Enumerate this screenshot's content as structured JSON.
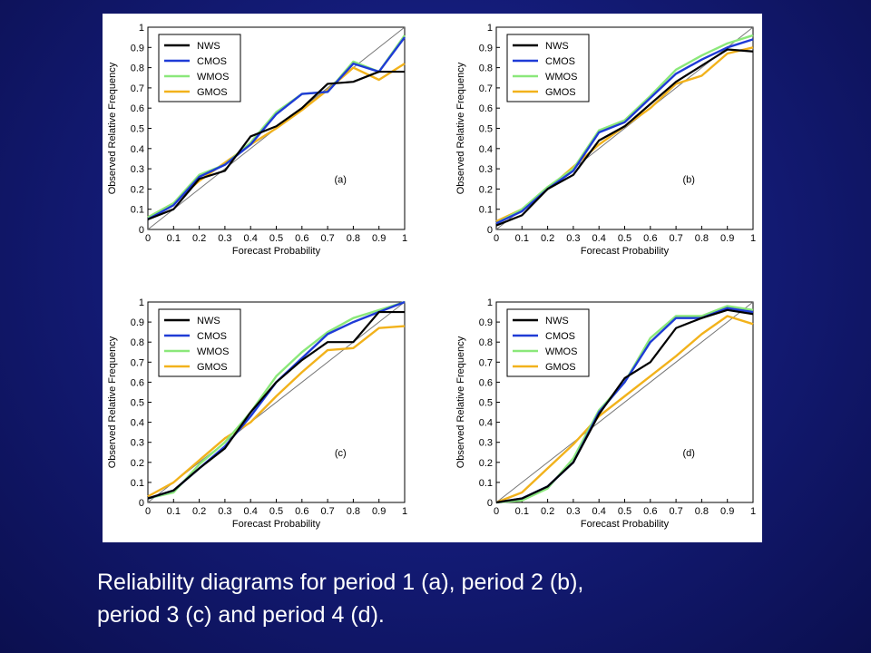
{
  "caption": {
    "line1": "Reliability diagrams for period 1 (a), period 2 (b),",
    "line2": "period 3 (c) and period 4 (d)."
  },
  "colors": {
    "NWS": "#000000",
    "CMOS": "#1f3bd6",
    "WMOS": "#8be87a",
    "GMOS": "#f2b21b",
    "background": "#141c7a",
    "diagonal": "#777777"
  },
  "chart_data": [
    {
      "type": "line",
      "panel_label": "(a)",
      "xlabel": "Forecast Probability",
      "ylabel": "Observed Relative Frequency",
      "xlim": [
        0,
        1
      ],
      "ylim": [
        0,
        1
      ],
      "xticks": [
        "0",
        "0.1",
        "0.2",
        "0.3",
        "0.4",
        "0.5",
        "0.6",
        "0.7",
        "0.8",
        "0.9",
        "1"
      ],
      "yticks": [
        "0",
        "0.1",
        "0.2",
        "0.3",
        "0.4",
        "0.5",
        "0.6",
        "0.7",
        "0.8",
        "0.9",
        "1"
      ],
      "legend_position": "top-left",
      "reference_line": "diagonal",
      "x": [
        0,
        0.1,
        0.2,
        0.3,
        0.4,
        0.5,
        0.6,
        0.7,
        0.8,
        0.9,
        1.0
      ],
      "series": [
        {
          "name": "NWS",
          "values": [
            0.05,
            0.1,
            0.25,
            0.29,
            0.46,
            0.51,
            0.6,
            0.72,
            0.73,
            0.78,
            0.78
          ]
        },
        {
          "name": "CMOS",
          "values": [
            0.05,
            0.12,
            0.26,
            0.32,
            0.42,
            0.57,
            0.67,
            0.68,
            0.82,
            0.78,
            0.95
          ]
        },
        {
          "name": "WMOS",
          "values": [
            0.06,
            0.13,
            0.27,
            0.32,
            0.43,
            0.58,
            0.67,
            0.68,
            0.83,
            0.78,
            0.96
          ]
        },
        {
          "name": "GMOS",
          "values": [
            0.06,
            0.13,
            0.24,
            0.33,
            0.42,
            0.5,
            0.59,
            0.69,
            0.8,
            0.74,
            0.82
          ]
        }
      ]
    },
    {
      "type": "line",
      "panel_label": "(b)",
      "xlabel": "Forecast Probability",
      "ylabel": "Observed Relative Frequency",
      "xlim": [
        0,
        1
      ],
      "ylim": [
        0,
        1
      ],
      "xticks": [
        "0",
        "0.1",
        "0.2",
        "0.3",
        "0.4",
        "0.5",
        "0.6",
        "0.7",
        "0.8",
        "0.9",
        "1"
      ],
      "yticks": [
        "0",
        "0.1",
        "0.2",
        "0.3",
        "0.4",
        "0.5",
        "0.6",
        "0.7",
        "0.8",
        "0.9",
        "1"
      ],
      "legend_position": "top-left",
      "reference_line": "diagonal",
      "x": [
        0,
        0.1,
        0.2,
        0.3,
        0.4,
        0.5,
        0.6,
        0.7,
        0.8,
        0.9,
        1.0
      ],
      "series": [
        {
          "name": "NWS",
          "values": [
            0.02,
            0.07,
            0.2,
            0.27,
            0.44,
            0.51,
            0.62,
            0.73,
            0.81,
            0.89,
            0.88
          ]
        },
        {
          "name": "CMOS",
          "values": [
            0.03,
            0.09,
            0.2,
            0.29,
            0.48,
            0.53,
            0.65,
            0.77,
            0.84,
            0.9,
            0.94
          ]
        },
        {
          "name": "WMOS",
          "values": [
            0.03,
            0.1,
            0.21,
            0.3,
            0.49,
            0.54,
            0.66,
            0.79,
            0.86,
            0.92,
            0.96
          ]
        },
        {
          "name": "GMOS",
          "values": [
            0.04,
            0.1,
            0.2,
            0.31,
            0.42,
            0.51,
            0.6,
            0.72,
            0.76,
            0.87,
            0.9
          ]
        }
      ]
    },
    {
      "type": "line",
      "panel_label": "(c)",
      "xlabel": "Forecast Probability",
      "ylabel": "Observed Relative Frequency",
      "xlim": [
        0,
        1
      ],
      "ylim": [
        0,
        1
      ],
      "xticks": [
        "0",
        "0.1",
        "0.2",
        "0.3",
        "0.4",
        "0.5",
        "0.6",
        "0.7",
        "0.8",
        "0.9",
        "1"
      ],
      "yticks": [
        "0",
        "0.1",
        "0.2",
        "0.3",
        "0.4",
        "0.5",
        "0.6",
        "0.7",
        "0.8",
        "0.9",
        "1"
      ],
      "legend_position": "top-left",
      "reference_line": "diagonal",
      "x": [
        0,
        0.1,
        0.2,
        0.3,
        0.4,
        0.5,
        0.6,
        0.7,
        0.8,
        0.9,
        1.0
      ],
      "series": [
        {
          "name": "NWS",
          "values": [
            0.02,
            0.06,
            0.17,
            0.27,
            0.45,
            0.6,
            0.71,
            0.8,
            0.8,
            0.95,
            0.95
          ]
        },
        {
          "name": "CMOS",
          "values": [
            0.02,
            0.06,
            0.17,
            0.28,
            0.43,
            0.6,
            0.72,
            0.84,
            0.9,
            0.95,
            1.0
          ]
        },
        {
          "name": "WMOS",
          "values": [
            0.02,
            0.05,
            0.19,
            0.3,
            0.45,
            0.63,
            0.75,
            0.85,
            0.92,
            0.96,
            1.0
          ]
        },
        {
          "name": "GMOS",
          "values": [
            0.03,
            0.1,
            0.21,
            0.32,
            0.4,
            0.53,
            0.65,
            0.76,
            0.77,
            0.87,
            0.88
          ]
        }
      ]
    },
    {
      "type": "line",
      "panel_label": "(d)",
      "xlabel": "Forecast Probability",
      "ylabel": "Observed Relative Frequency",
      "xlim": [
        0,
        1
      ],
      "ylim": [
        0,
        1
      ],
      "xticks": [
        "0",
        "0.1",
        "0.2",
        "0.3",
        "0.4",
        "0.5",
        "0.6",
        "0.7",
        "0.8",
        "0.9",
        "1"
      ],
      "yticks": [
        "0",
        "0.1",
        "0.2",
        "0.3",
        "0.4",
        "0.5",
        "0.6",
        "0.7",
        "0.8",
        "0.9",
        "1"
      ],
      "legend_position": "top-left",
      "reference_line": "diagonal",
      "x": [
        0,
        0.1,
        0.2,
        0.3,
        0.4,
        0.5,
        0.6,
        0.7,
        0.8,
        0.9,
        1.0
      ],
      "series": [
        {
          "name": "NWS",
          "values": [
            0.0,
            0.02,
            0.08,
            0.2,
            0.44,
            0.62,
            0.7,
            0.87,
            0.92,
            0.96,
            0.94
          ]
        },
        {
          "name": "CMOS",
          "values": [
            0.0,
            0.02,
            0.08,
            0.2,
            0.45,
            0.6,
            0.8,
            0.92,
            0.92,
            0.97,
            0.95
          ]
        },
        {
          "name": "WMOS",
          "values": [
            0.0,
            0.01,
            0.07,
            0.22,
            0.46,
            0.6,
            0.82,
            0.93,
            0.93,
            0.98,
            0.96
          ]
        },
        {
          "name": "GMOS",
          "values": [
            0.0,
            0.05,
            0.17,
            0.29,
            0.43,
            0.53,
            0.63,
            0.73,
            0.84,
            0.93,
            0.89
          ]
        }
      ]
    }
  ]
}
